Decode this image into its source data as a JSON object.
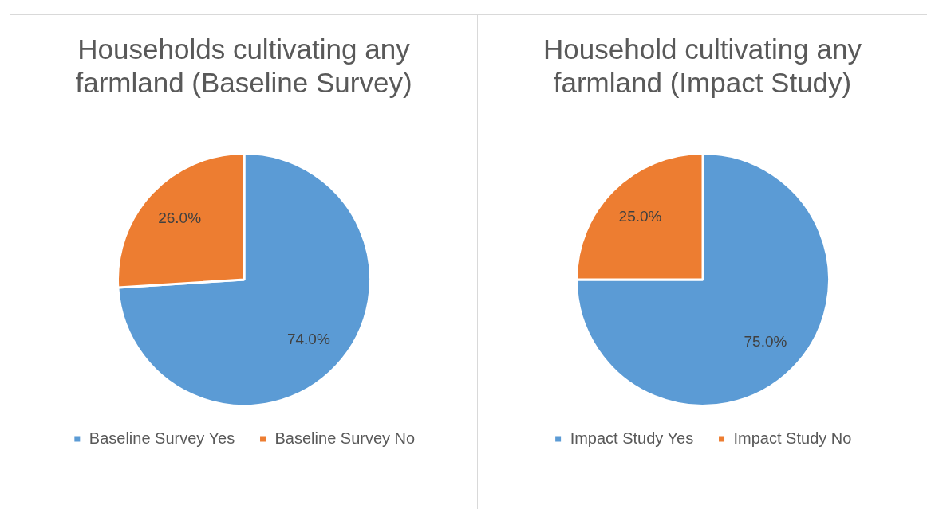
{
  "chart_data": [
    {
      "type": "pie",
      "title": "Households cultivating any farmland (Baseline Survey)",
      "categories": [
        "Baseline Survey Yes",
        "Baseline Survey No"
      ],
      "values": [
        74,
        26
      ],
      "colors": [
        "#5b9bd5",
        "#ed7d31"
      ],
      "value_labels": [
        "74.0%",
        "26.0%"
      ],
      "legend": "bottom"
    },
    {
      "type": "pie",
      "title": "Household cultivating any farmland (Impact Study)",
      "categories": [
        "Impact Study Yes",
        "Impact Study No"
      ],
      "values": [
        75,
        25
      ],
      "colors": [
        "#5b9bd5",
        "#ed7d31"
      ],
      "value_labels": [
        "75.0%",
        "25.0%"
      ],
      "legend": "bottom"
    }
  ]
}
